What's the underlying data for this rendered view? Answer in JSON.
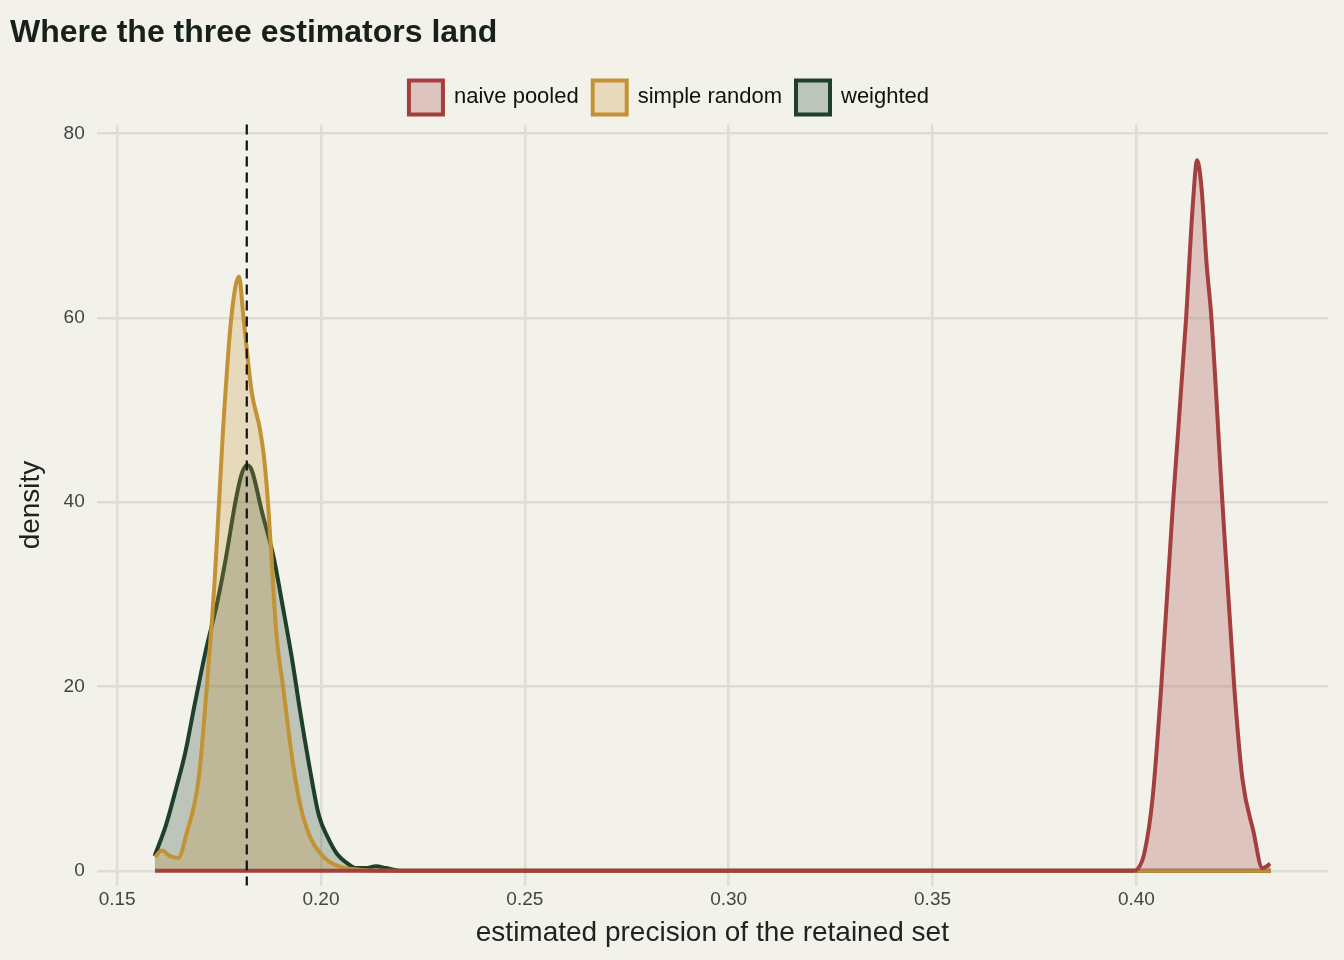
{
  "chart_data": {
    "type": "area",
    "title": "Where the three estimators land",
    "xlabel": "estimated precision of the retained set",
    "ylabel": "density",
    "xlim": [
      0.145,
      0.447
    ],
    "ylim": [
      -1.6,
      81
    ],
    "xticks": [
      0.15,
      {
        "value": 0.2,
        "label": "0.20"
      },
      0.25,
      {
        "value": 0.3,
        "label": "0.30"
      },
      0.35,
      {
        "value": 0.4,
        "label": "0.40"
      }
    ],
    "yticks": [
      0,
      20,
      40,
      60,
      80
    ],
    "grid": true,
    "legend": "top",
    "line_style": "solid",
    "marker": "none",
    "series": [
      {
        "name": "naive pooled",
        "color": "#a43f3f",
        "x": [
          0.1593,
          0.25,
          0.35,
          0.399,
          0.4003,
          0.402,
          0.404,
          0.4061,
          0.409,
          0.4122,
          0.4138,
          0.4149,
          0.416,
          0.4172,
          0.4184,
          0.4211,
          0.424,
          0.426,
          0.4287,
          0.4309,
          0.432,
          0.4328
        ],
        "values": [
          0,
          0,
          0,
          0,
          0.2,
          2,
          8,
          20,
          40,
          60,
          72,
          77.1,
          74,
          66,
          60,
          40,
          20,
          10,
          4.3,
          0.3,
          0.5,
          0.8
        ]
      },
      {
        "name": "simple random",
        "color": "#c39234",
        "x": [
          0.1593,
          0.161,
          0.163,
          0.165,
          0.167,
          0.17,
          0.172,
          0.174,
          0.176,
          0.178,
          0.1799,
          0.181,
          0.183,
          0.185,
          0.186,
          0.187,
          0.188,
          0.189,
          0.1907,
          0.193,
          0.195,
          0.1975,
          0.1997,
          0.202,
          0.205,
          0.21,
          0.22,
          0.3,
          0.433
        ],
        "values": [
          1.5,
          2.2,
          1.6,
          1.4,
          4,
          10,
          20,
          32,
          48,
          60,
          64.5,
          60,
          52,
          48,
          45,
          40,
          33,
          26,
          20,
          12,
          7,
          3.5,
          2,
          1,
          0.4,
          0.1,
          0,
          0,
          0
        ]
      },
      {
        "name": "weighted",
        "color": "#1e3f2b",
        "x": [
          0.1592,
          0.162,
          0.1645,
          0.1667,
          0.169,
          0.1718,
          0.1745,
          0.1767,
          0.179,
          0.1805,
          0.1818,
          0.183,
          0.1855,
          0.1884,
          0.1905,
          0.1929,
          0.195,
          0.1973,
          0.1995,
          0.2017,
          0.204,
          0.2065,
          0.2085,
          0.211,
          0.2135,
          0.216,
          0.22,
          0.3,
          0.433
        ],
        "values": [
          1.6,
          5,
          9,
          12.8,
          18,
          24,
          29,
          34,
          40,
          43,
          44,
          43.5,
          39,
          34,
          29,
          23,
          17,
          11,
          6,
          3.6,
          1.8,
          0.8,
          0.3,
          0.3,
          0.5,
          0.3,
          0,
          0,
          0
        ]
      }
    ],
    "ref_lines": [
      {
        "axis": "x",
        "value": 0.1818,
        "color": "#111111",
        "line_style": "dashed"
      }
    ]
  }
}
